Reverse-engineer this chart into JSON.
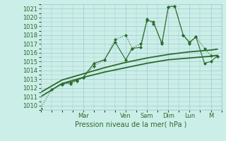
{
  "xlabel": "Pression niveau de la mer( hPa )",
  "ylim": [
    1009.5,
    1021.5
  ],
  "xlim": [
    0,
    8.5
  ],
  "yticks": [
    1010,
    1011,
    1012,
    1013,
    1014,
    1015,
    1016,
    1017,
    1018,
    1019,
    1020,
    1021
  ],
  "bg_color": "#cceee8",
  "grid_color": "#99cccc",
  "line_color": "#2d6b2d",
  "day_labels": [
    "Mar",
    "Ven",
    "Sam",
    "Dim",
    "Lun",
    "M"
  ],
  "day_positions": [
    2.0,
    4.0,
    5.0,
    6.0,
    7.0,
    8.0
  ],
  "series": [
    {
      "x": [
        0.0,
        0.5,
        1.0,
        1.4,
        1.7,
        2.0,
        2.5,
        3.0,
        3.5,
        4.0,
        4.3,
        4.7,
        5.0,
        5.3,
        5.7,
        6.0,
        6.3,
        6.7,
        7.0,
        7.3,
        7.7,
        8.0,
        8.3
      ],
      "y": [
        1009.7,
        1011.8,
        1012.4,
        1012.5,
        1012.8,
        1013.2,
        1014.5,
        1015.2,
        1017.5,
        1018.0,
        1016.5,
        1017.0,
        1019.8,
        1019.3,
        1017.2,
        1021.2,
        1021.3,
        1018.0,
        1017.0,
        1017.8,
        1016.5,
        1015.7,
        1015.6
      ],
      "marker": "D",
      "ms": 2.0,
      "lw": 0.8,
      "ls": ":"
    },
    {
      "x": [
        1.0,
        1.4,
        1.7,
        2.0,
        2.5,
        3.0,
        3.5,
        4.0,
        4.3,
        4.7,
        5.0,
        5.3,
        5.7,
        6.0,
        6.3,
        6.7,
        7.0,
        7.3,
        7.7,
        8.0,
        8.3
      ],
      "y": [
        1012.5,
        1012.6,
        1012.9,
        1013.2,
        1014.8,
        1015.2,
        1017.2,
        1015.2,
        1016.5,
        1016.6,
        1019.7,
        1019.5,
        1017.0,
        1021.2,
        1021.3,
        1018.0,
        1017.2,
        1017.8,
        1014.8,
        1015.0,
        1015.6
      ],
      "marker": "D",
      "ms": 2.0,
      "lw": 0.8,
      "ls": "-"
    },
    {
      "x": [
        0.0,
        1.0,
        2.0,
        3.0,
        4.0,
        5.0,
        6.0,
        7.0,
        8.0,
        8.3
      ],
      "y": [
        1011.0,
        1012.5,
        1013.2,
        1013.8,
        1014.3,
        1014.8,
        1015.2,
        1015.4,
        1015.6,
        1015.7
      ],
      "marker": null,
      "ms": 0,
      "lw": 1.3,
      "ls": "-"
    },
    {
      "x": [
        0.0,
        1.0,
        2.0,
        3.0,
        4.0,
        5.0,
        6.0,
        7.0,
        8.0,
        8.3
      ],
      "y": [
        1011.5,
        1012.9,
        1013.6,
        1014.3,
        1014.9,
        1015.4,
        1015.8,
        1016.1,
        1016.3,
        1016.4
      ],
      "marker": null,
      "ms": 0,
      "lw": 1.3,
      "ls": "-"
    }
  ]
}
